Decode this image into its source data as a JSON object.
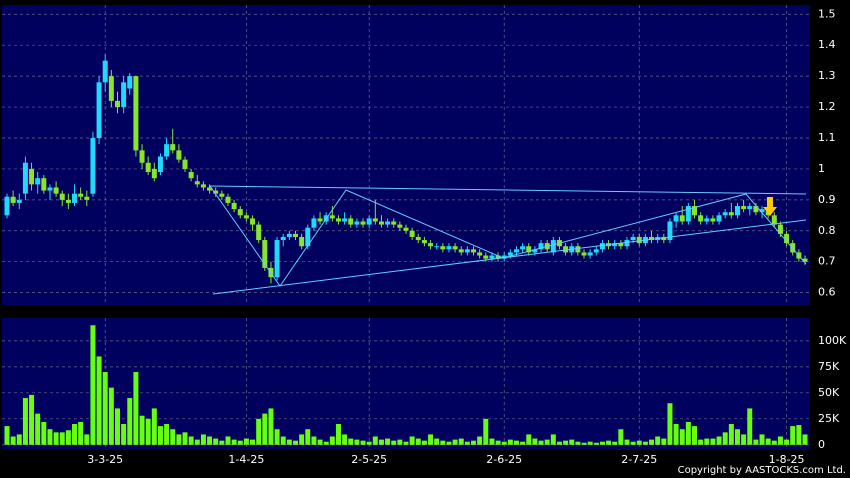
{
  "chart_data": {
    "type": "candlestick",
    "categories": [
      null,
      null,
      null,
      null,
      null,
      null,
      null,
      null,
      null,
      null,
      null,
      null,
      null,
      null,
      null,
      null,
      "3-3-25",
      null,
      null,
      null,
      null,
      null,
      null,
      null,
      null,
      null,
      null,
      null,
      null,
      null,
      null,
      null,
      null,
      null,
      null,
      null,
      null,
      null,
      null,
      "1-4-25",
      null,
      null,
      null,
      null,
      null,
      null,
      null,
      null,
      null,
      null,
      null,
      null,
      null,
      null,
      null,
      null,
      null,
      null,
      null,
      "2-5-25",
      null,
      null,
      null,
      null,
      null,
      null,
      null,
      null,
      null,
      null,
      null,
      null,
      null,
      null,
      null,
      null,
      null,
      null,
      null,
      null,
      null,
      "2-6-25",
      null,
      null,
      null,
      null,
      null,
      null,
      null,
      null,
      null,
      null,
      null,
      null,
      null,
      null,
      null,
      null,
      null,
      null,
      null,
      null,
      null,
      "2-7-25",
      null,
      null,
      null,
      null,
      null,
      null,
      null,
      null,
      null,
      null,
      null,
      null,
      null,
      null,
      null,
      null,
      null,
      null,
      null,
      null,
      null,
      null,
      null,
      "1-8-25",
      null,
      null,
      null
    ],
    "open": [
      0.85,
      0.91,
      0.89,
      0.92,
      1.0,
      0.95,
      0.97,
      0.93,
      0.94,
      0.92,
      0.9,
      0.89,
      0.92,
      0.91,
      0.92,
      1.1,
      1.28,
      1.3,
      1.22,
      1.2,
      1.26,
      1.3,
      1.06,
      1.02,
      1.0,
      0.99,
      1.04,
      1.08,
      1.06,
      1.03,
      0.99,
      0.96,
      0.95,
      0.94,
      0.93,
      0.92,
      0.91,
      0.89,
      0.87,
      0.85,
      0.84,
      0.82,
      0.77,
      0.68,
      0.65,
      0.77,
      0.78,
      0.79,
      0.78,
      0.75,
      0.81,
      0.84,
      0.83,
      0.85,
      0.84,
      0.83,
      0.84,
      0.82,
      0.83,
      0.82,
      0.84,
      0.83,
      0.82,
      0.83,
      0.82,
      0.81,
      0.8,
      0.78,
      0.77,
      0.76,
      0.75,
      0.75,
      0.74,
      0.75,
      0.74,
      0.73,
      0.74,
      0.73,
      0.72,
      0.71,
      0.72,
      0.71,
      0.72,
      0.73,
      0.74,
      0.75,
      0.73,
      0.74,
      0.76,
      0.73,
      0.77,
      0.75,
      0.73,
      0.75,
      0.73,
      0.72,
      0.73,
      0.74,
      0.76,
      0.75,
      0.76,
      0.75,
      0.77,
      0.78,
      0.76,
      0.78,
      0.77,
      0.78,
      0.77,
      0.83,
      0.85,
      0.83,
      0.88,
      0.85,
      0.83,
      0.84,
      0.83,
      0.85,
      0.86,
      0.85,
      0.88,
      0.87,
      0.88,
      0.86,
      0.87,
      0.85,
      0.82,
      0.79,
      0.76,
      0.73,
      0.71
    ],
    "high": [
      0.92,
      0.93,
      0.92,
      1.04,
      1.02,
      0.99,
      0.98,
      0.95,
      0.96,
      0.93,
      0.92,
      0.95,
      0.94,
      0.93,
      1.12,
      1.3,
      1.37,
      1.32,
      1.25,
      1.3,
      1.31,
      1.3,
      1.08,
      1.04,
      1.02,
      1.05,
      1.1,
      1.13,
      1.08,
      1.04,
      1.0,
      0.98,
      0.96,
      0.95,
      0.94,
      0.93,
      0.92,
      0.9,
      0.88,
      0.86,
      0.85,
      0.83,
      0.78,
      0.7,
      0.78,
      0.79,
      0.8,
      0.8,
      0.79,
      0.82,
      0.85,
      0.86,
      0.86,
      0.88,
      0.85,
      0.86,
      0.85,
      0.84,
      0.84,
      0.85,
      0.9,
      0.85,
      0.84,
      0.84,
      0.83,
      0.82,
      0.81,
      0.79,
      0.78,
      0.77,
      0.76,
      0.76,
      0.76,
      0.76,
      0.75,
      0.75,
      0.75,
      0.74,
      0.73,
      0.73,
      0.73,
      0.73,
      0.74,
      0.75,
      0.76,
      0.76,
      0.75,
      0.77,
      0.77,
      0.78,
      0.78,
      0.76,
      0.76,
      0.76,
      0.74,
      0.74,
      0.75,
      0.77,
      0.77,
      0.77,
      0.77,
      0.78,
      0.79,
      0.79,
      0.79,
      0.8,
      0.79,
      0.79,
      0.84,
      0.86,
      0.88,
      0.89,
      0.9,
      0.86,
      0.85,
      0.85,
      0.86,
      0.87,
      0.89,
      0.89,
      0.9,
      0.89,
      0.89,
      0.88,
      0.88,
      0.86,
      0.83,
      0.8,
      0.77,
      0.74,
      0.72
    ],
    "low": [
      0.84,
      0.88,
      0.87,
      0.9,
      0.93,
      0.92,
      0.92,
      0.9,
      0.91,
      0.88,
      0.87,
      0.88,
      0.9,
      0.88,
      0.91,
      1.08,
      1.25,
      1.2,
      1.18,
      1.18,
      1.24,
      1.04,
      1.0,
      0.98,
      0.96,
      0.98,
      1.03,
      1.05,
      1.02,
      0.99,
      0.96,
      0.94,
      0.93,
      0.92,
      0.91,
      0.9,
      0.88,
      0.86,
      0.84,
      0.83,
      0.8,
      0.76,
      0.67,
      0.63,
      0.64,
      0.75,
      0.77,
      0.77,
      0.74,
      0.74,
      0.8,
      0.82,
      0.82,
      0.83,
      0.82,
      0.82,
      0.81,
      0.81,
      0.81,
      0.81,
      0.82,
      0.81,
      0.81,
      0.81,
      0.8,
      0.79,
      0.77,
      0.76,
      0.75,
      0.74,
      0.74,
      0.73,
      0.73,
      0.73,
      0.72,
      0.72,
      0.72,
      0.71,
      0.7,
      0.7,
      0.7,
      0.7,
      0.71,
      0.72,
      0.73,
      0.72,
      0.72,
      0.73,
      0.73,
      0.72,
      0.74,
      0.72,
      0.72,
      0.72,
      0.71,
      0.71,
      0.72,
      0.73,
      0.74,
      0.74,
      0.74,
      0.74,
      0.76,
      0.75,
      0.75,
      0.76,
      0.76,
      0.76,
      0.76,
      0.81,
      0.82,
      0.82,
      0.84,
      0.82,
      0.82,
      0.82,
      0.82,
      0.84,
      0.84,
      0.84,
      0.86,
      0.85,
      0.85,
      0.84,
      0.84,
      0.81,
      0.78,
      0.75,
      0.72,
      0.7,
      0.69
    ],
    "close": [
      0.91,
      0.89,
      0.9,
      1.02,
      0.95,
      0.97,
      0.93,
      0.94,
      0.92,
      0.9,
      0.89,
      0.92,
      0.91,
      0.9,
      1.1,
      1.28,
      1.35,
      1.22,
      1.2,
      1.28,
      1.3,
      1.06,
      1.02,
      0.99,
      0.97,
      1.04,
      1.08,
      1.06,
      1.03,
      1.0,
      0.97,
      0.95,
      0.94,
      0.93,
      0.92,
      0.91,
      0.89,
      0.87,
      0.85,
      0.84,
      0.82,
      0.77,
      0.68,
      0.65,
      0.77,
      0.78,
      0.79,
      0.78,
      0.75,
      0.81,
      0.84,
      0.83,
      0.85,
      0.84,
      0.83,
      0.84,
      0.82,
      0.83,
      0.82,
      0.84,
      0.83,
      0.82,
      0.83,
      0.82,
      0.81,
      0.8,
      0.78,
      0.77,
      0.76,
      0.75,
      0.75,
      0.74,
      0.75,
      0.74,
      0.73,
      0.74,
      0.73,
      0.72,
      0.71,
      0.72,
      0.71,
      0.72,
      0.73,
      0.74,
      0.75,
      0.73,
      0.74,
      0.76,
      0.74,
      0.77,
      0.75,
      0.73,
      0.75,
      0.73,
      0.72,
      0.73,
      0.74,
      0.76,
      0.75,
      0.76,
      0.75,
      0.77,
      0.78,
      0.76,
      0.78,
      0.77,
      0.78,
      0.77,
      0.83,
      0.85,
      0.83,
      0.88,
      0.85,
      0.83,
      0.84,
      0.83,
      0.85,
      0.86,
      0.85,
      0.88,
      0.87,
      0.88,
      0.86,
      0.87,
      0.85,
      0.82,
      0.79,
      0.76,
      0.73,
      0.71,
      0.7
    ],
    "up_color": "#22d8ff",
    "down_color": "#88e62a",
    "ylim": [
      0.56,
      1.53
    ],
    "yticks": [
      0.6,
      0.7,
      0.8,
      0.9,
      1,
      1.1,
      1.2,
      1.3,
      1.4,
      1.5
    ],
    "grid": true,
    "volume": {
      "color": "#66ff11",
      "values": [
        18000,
        8000,
        10000,
        45000,
        48000,
        30000,
        22000,
        15000,
        12000,
        12000,
        14000,
        20000,
        22000,
        10000,
        115000,
        85000,
        70000,
        55000,
        35000,
        20000,
        45000,
        70000,
        28000,
        25000,
        35000,
        18000,
        20000,
        15000,
        10000,
        12000,
        8000,
        5000,
        10000,
        8000,
        6000,
        4000,
        8000,
        5000,
        4000,
        6000,
        5000,
        25000,
        30000,
        35000,
        15000,
        8000,
        5000,
        4000,
        10000,
        15000,
        8000,
        5000,
        3000,
        8000,
        20000,
        10000,
        6000,
        5000,
        4000,
        3000,
        8000,
        5000,
        6000,
        4000,
        5000,
        3000,
        8000,
        6000,
        4000,
        10000,
        6000,
        4000,
        3000,
        5000,
        6000,
        3000,
        4000,
        8000,
        25000,
        6000,
        4000,
        3000,
        5000,
        4000,
        3000,
        10000,
        6000,
        4000,
        5000,
        10000,
        3000,
        4000,
        5000,
        3000,
        2000,
        3000,
        2000,
        3000,
        4000,
        3000,
        15000,
        5000,
        3000,
        4000,
        3000,
        5000,
        8000,
        6000,
        40000,
        20000,
        15000,
        22000,
        18000,
        5000,
        6000,
        6000,
        8000,
        12000,
        20000,
        15000,
        10000,
        35000,
        5000,
        10000,
        6000,
        4000,
        8000,
        5000,
        18000,
        19000,
        10000
      ],
      "ylim": [
        -5000,
        122000
      ],
      "yticks": [
        0,
        {
          "value": 25000,
          "label": "25K"
        },
        {
          "value": 50000,
          "label": "50K"
        },
        {
          "value": 75000,
          "label": "75K"
        },
        {
          "value": 100000,
          "label": "100K"
        }
      ]
    },
    "source": "Copyright by AASTOCKS.com Ltd."
  }
}
